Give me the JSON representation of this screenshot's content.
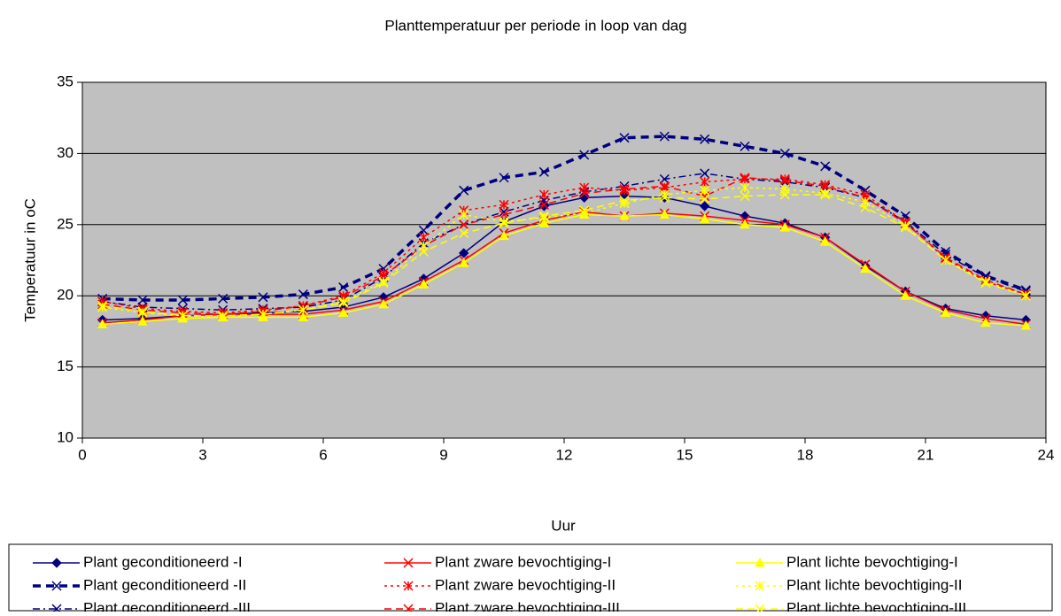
{
  "chart_data": {
    "type": "line",
    "title": "Planttemperatuur per periode in loop van dag",
    "x_label": "Uur",
    "y_label": "Temperatuur in oC",
    "x": [
      0.5,
      1.5,
      2.5,
      3.5,
      4.5,
      5.5,
      6.5,
      7.5,
      8.5,
      9.5,
      10.5,
      11.5,
      12.5,
      13.5,
      14.5,
      15.5,
      16.5,
      17.5,
      18.5,
      19.5,
      20.5,
      21.5,
      22.5,
      23.5
    ],
    "xlim": [
      0,
      24
    ],
    "xticks": [
      0,
      3,
      6,
      9,
      12,
      15,
      18,
      21,
      24
    ],
    "ylim": [
      10,
      35
    ],
    "yticks": [
      10,
      15,
      20,
      25,
      30,
      35
    ],
    "grid": true,
    "series": [
      {
        "name": "Plant geconditioneerd -I",
        "color": "#000080",
        "dash": "solid",
        "marker": "diamond",
        "values": [
          18.3,
          18.4,
          18.6,
          18.7,
          18.8,
          18.9,
          19.2,
          19.9,
          21.2,
          23.0,
          25.2,
          26.3,
          26.9,
          27.0,
          26.9,
          26.3,
          25.6,
          25.1,
          24.1,
          22.1,
          20.3,
          19.1,
          18.6,
          18.3
        ]
      },
      {
        "name": "Plant geconditioneerd -II",
        "color": "#000080",
        "dash": "dash-thick",
        "marker": "x",
        "values": [
          19.8,
          19.7,
          19.7,
          19.8,
          19.9,
          20.1,
          20.6,
          21.9,
          24.6,
          27.4,
          28.3,
          28.7,
          29.9,
          31.1,
          31.2,
          31.0,
          30.5,
          30.0,
          29.1,
          27.4,
          25.6,
          23.1,
          21.4,
          20.4
        ]
      },
      {
        "name": "Plant geconditioneerd -III",
        "color": "#000080",
        "dash": "dashdot",
        "marker": "x",
        "values": [
          19.6,
          19.2,
          19.1,
          19.0,
          19.1,
          19.2,
          19.7,
          21.3,
          23.7,
          25.0,
          25.9,
          26.7,
          27.3,
          27.7,
          28.2,
          28.6,
          28.2,
          28.0,
          27.6,
          26.9,
          25.2,
          22.9,
          21.3,
          20.3
        ]
      },
      {
        "name": "Plant zware bevochtiging-I",
        "color": "#ff0000",
        "dash": "solid",
        "marker": "x",
        "values": [
          18.1,
          18.3,
          18.6,
          18.7,
          18.7,
          18.7,
          19.0,
          19.6,
          21.0,
          22.5,
          24.4,
          25.3,
          25.9,
          25.6,
          25.8,
          25.6,
          25.3,
          25.0,
          24.1,
          22.2,
          20.3,
          19.0,
          18.4,
          18.0
        ]
      },
      {
        "name": "Plant zware bevochtiging-II",
        "color": "#ff0000",
        "dash": "dot",
        "marker": "star",
        "values": [
          19.6,
          19.1,
          18.9,
          18.8,
          19.0,
          19.3,
          20.0,
          21.6,
          24.1,
          26.0,
          26.4,
          27.1,
          27.6,
          27.4,
          27.6,
          28.0,
          28.2,
          28.2,
          27.8,
          27.1,
          25.2,
          22.6,
          21.0,
          20.1
        ]
      },
      {
        "name": "Plant zware bevochtiging-III",
        "color": "#ff0000",
        "dash": "dash",
        "marker": "x",
        "values": [
          19.4,
          19.0,
          18.8,
          18.7,
          18.9,
          19.3,
          19.9,
          21.4,
          23.5,
          25.0,
          25.7,
          26.4,
          27.2,
          27.5,
          27.7,
          27.0,
          28.3,
          28.1,
          27.7,
          26.9,
          25.1,
          22.7,
          21.1,
          20.1
        ]
      },
      {
        "name": "Plant lichte bevochtiging-I",
        "color": "#ffff00",
        "dash": "solid",
        "marker": "triangle",
        "values": [
          18.0,
          18.2,
          18.4,
          18.5,
          18.5,
          18.5,
          18.8,
          19.4,
          20.8,
          22.3,
          24.2,
          25.1,
          25.7,
          25.6,
          25.7,
          25.4,
          25.0,
          24.8,
          23.8,
          21.9,
          20.0,
          18.8,
          18.1,
          17.9
        ]
      },
      {
        "name": "Plant lichte bevochtiging-II",
        "color": "#ffff00",
        "dash": "dot",
        "marker": "star",
        "values": [
          19.2,
          18.8,
          18.6,
          18.5,
          18.7,
          19.0,
          19.6,
          21.0,
          23.5,
          25.7,
          25.2,
          25.5,
          25.8,
          26.5,
          27.1,
          27.4,
          27.6,
          27.5,
          27.2,
          26.6,
          24.9,
          22.5,
          21.0,
          20.0
        ]
      },
      {
        "name": "Plant lichte bevochtiging-III",
        "color": "#ffff00",
        "dash": "dash",
        "marker": "x",
        "values": [
          19.3,
          18.9,
          18.6,
          18.6,
          18.7,
          19.0,
          19.5,
          20.9,
          23.1,
          24.4,
          25.1,
          25.6,
          26.0,
          26.7,
          26.9,
          26.8,
          27.0,
          27.1,
          27.1,
          26.2,
          24.8,
          22.5,
          20.9,
          20.0
        ]
      }
    ]
  }
}
